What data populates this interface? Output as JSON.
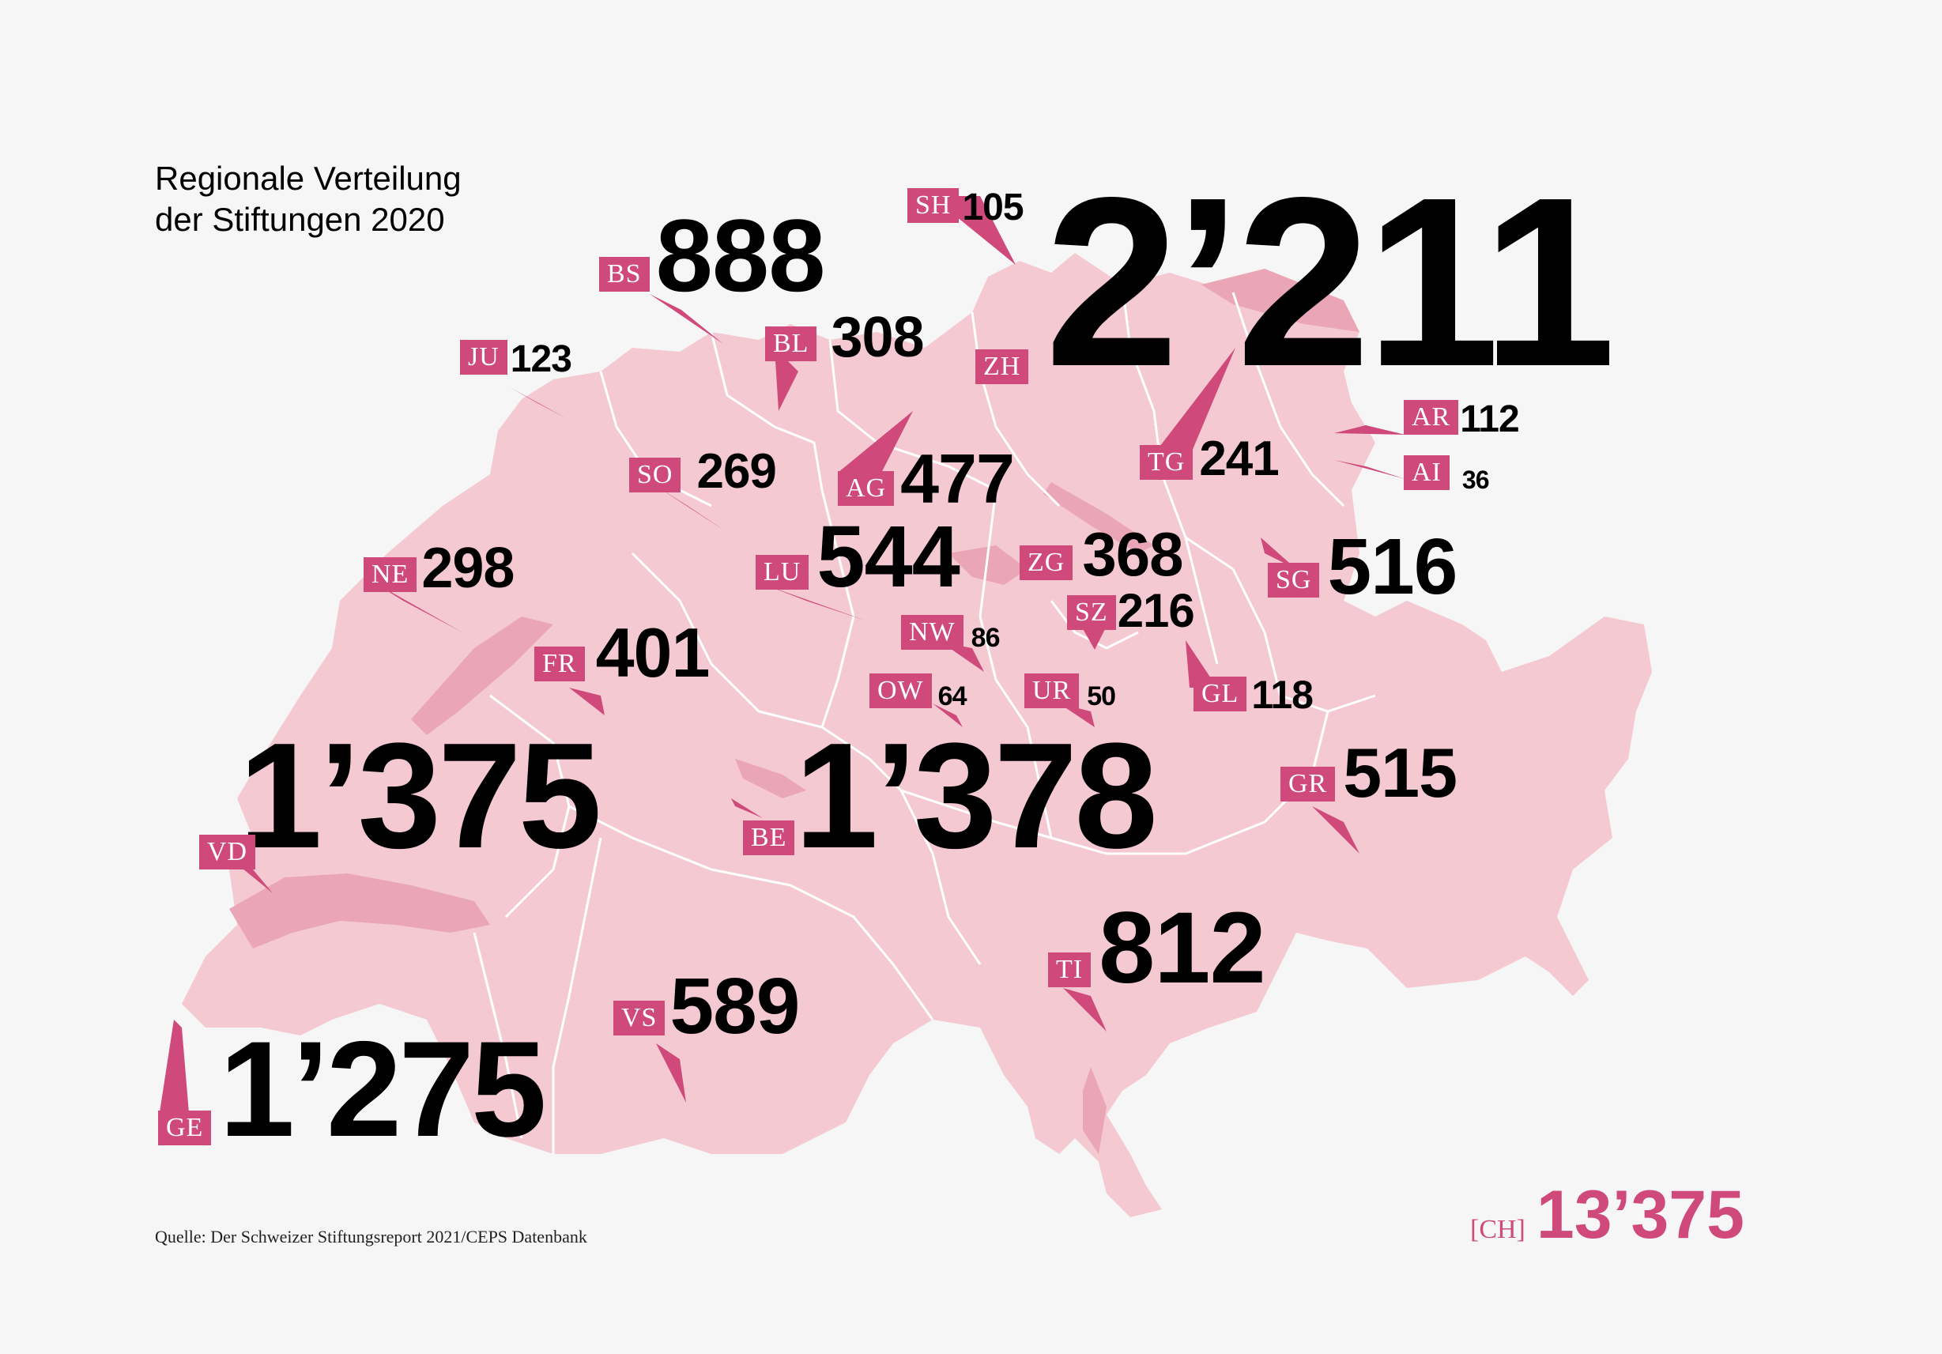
{
  "title": {
    "line1": "Regionale Verteilung",
    "line2": "der Stiftungen 2020"
  },
  "source": "Quelle: Der Schweizer Stiftungsreport 2021/CEPS Datenbank",
  "total": {
    "label": "[CH]",
    "value": "13’375"
  },
  "colors": {
    "map_fill": "#f4c9d2",
    "lake_fill": "#eaa5b6",
    "border": "#ffffff",
    "tag": "#cf4a7a",
    "text": "#000000",
    "background": "#f7f6f6"
  },
  "cantons": [
    {
      "code": "SH",
      "count": "105"
    },
    {
      "code": "ZH",
      "count": "2’211"
    },
    {
      "code": "BS",
      "count": "888"
    },
    {
      "code": "BL",
      "count": "308"
    },
    {
      "code": "JU",
      "count": "123"
    },
    {
      "code": "AR",
      "count": "112"
    },
    {
      "code": "AI",
      "count": "36"
    },
    {
      "code": "TG",
      "count": "241"
    },
    {
      "code": "SO",
      "count": "269"
    },
    {
      "code": "AG",
      "count": "477"
    },
    {
      "code": "NE",
      "count": "298"
    },
    {
      "code": "LU",
      "count": "544"
    },
    {
      "code": "ZG",
      "count": "368"
    },
    {
      "code": "SG",
      "count": "516"
    },
    {
      "code": "SZ",
      "count": "216"
    },
    {
      "code": "NW",
      "count": "86"
    },
    {
      "code": "FR",
      "count": "401"
    },
    {
      "code": "OW",
      "count": "64"
    },
    {
      "code": "UR",
      "count": "50"
    },
    {
      "code": "GL",
      "count": "118"
    },
    {
      "code": "VD",
      "count": "1’375"
    },
    {
      "code": "BE",
      "count": "1’378"
    },
    {
      "code": "GR",
      "count": "515"
    },
    {
      "code": "TI",
      "count": "812"
    },
    {
      "code": "VS",
      "count": "589"
    },
    {
      "code": "GE",
      "count": "1’275"
    }
  ]
}
